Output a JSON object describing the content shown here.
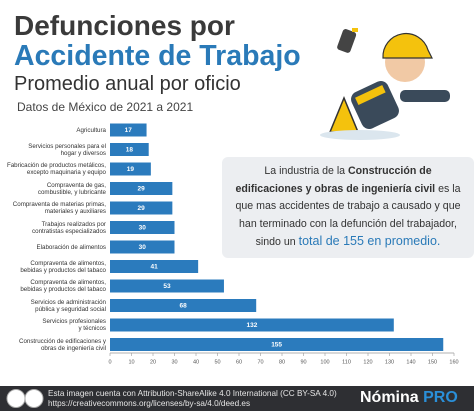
{
  "header": {
    "title_line1": "Defunciones por",
    "title_line2": "Accidente de Trabajo",
    "subtitle": "Promedio anual por oficio",
    "source": "Datos de México de  2021 a 2021"
  },
  "chart_data": {
    "type": "bar",
    "orientation": "horizontal",
    "categories": [
      "Agricultura",
      "Servicios personales para el\nhogar y diversos",
      "Fabricación de productos metálicos,\nexcepto maquinaria y equipo",
      "Compraventa de gas,\ncombustible, y lubricante",
      "Compraventa de materias primas,\nmateriales y auxiliares",
      "Trabajos realizados por\ncontratistas especializados",
      "Elaboración de alimentos",
      "Compraventa de alimentos,\nbebidas y productos del tabaco",
      "Compraventa de alimentos,\nbebidas y productos del tabaco",
      "Servicios de administración\npública y seguridad social",
      "Servicios profesionales\ny técnicos",
      "Construcción de edificaciones y\nobras de ingeniería civil"
    ],
    "values": [
      17,
      18,
      19,
      29,
      29,
      30,
      30,
      41,
      53,
      68,
      132,
      155
    ],
    "color": "#2b7bbd",
    "xlim": [
      0,
      160
    ],
    "xticks": [
      0,
      10,
      20,
      30,
      40,
      50,
      60,
      70,
      80,
      90,
      100,
      110,
      120,
      130,
      140,
      150,
      160
    ]
  },
  "callout": {
    "segments": [
      {
        "text": "La industria de la ",
        "style": "normal"
      },
      {
        "text": "Construcción de edificaciones y obras de ingeniería civil",
        "style": "bold"
      },
      {
        "text": " es la que mas accidentes de trabajo a causado y que han terminado con la defunción del trabajador, sindo un ",
        "style": "normal"
      },
      {
        "text": "total de 155 en promedio.",
        "style": "highlight"
      }
    ]
  },
  "footer": {
    "license": "Esta imagen cuenta con Attribution-ShareAlike 4.0 International (CC BY-SA 4.0)",
    "url": "https://creativecommons.org/licenses/by-sa/4.0/deed.es",
    "brand_main": "Nómina",
    "brand_accent": "PRO"
  }
}
